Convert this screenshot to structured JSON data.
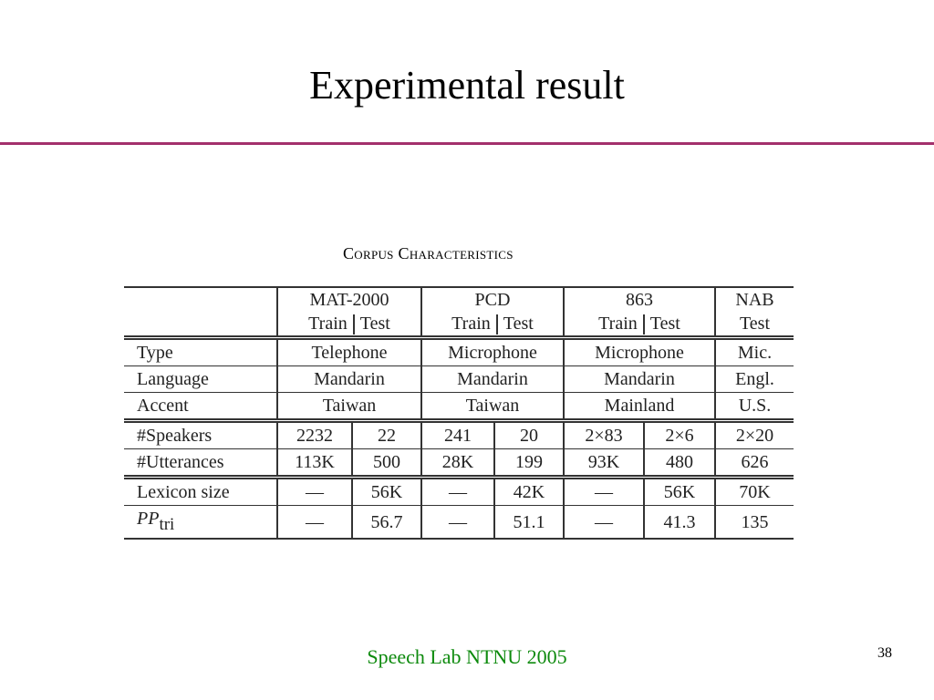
{
  "slide": {
    "title": "Experimental result",
    "footer": "Speech Lab NTNU 2005",
    "page_number": "38",
    "accent_color": "#a3306c",
    "footer_color": "#0d8a0d"
  },
  "table": {
    "caption": "Corpus Characteristics",
    "corpora": [
      "MAT-2000",
      "PCD",
      "863",
      "NAB"
    ],
    "subheaders": {
      "train": "Train",
      "test": "Test",
      "nab_test": "Test"
    },
    "rows": {
      "type": {
        "label": "Type",
        "values": [
          "Telephone",
          "Microphone",
          "Microphone",
          "Mic."
        ]
      },
      "language": {
        "label": "Language",
        "values": [
          "Mandarin",
          "Mandarin",
          "Mandarin",
          "Engl."
        ]
      },
      "accent": {
        "label": "Accent",
        "values": [
          "Taiwan",
          "Taiwan",
          "Mainland",
          "U.S."
        ]
      },
      "speakers": {
        "label": "#Speakers",
        "values": [
          "2232",
          "22",
          "241",
          "20",
          "2×83",
          "2×6",
          "2×20"
        ]
      },
      "utterances": {
        "label": "#Utterances",
        "values": [
          "113K",
          "500",
          "28K",
          "199",
          "93K",
          "480",
          "626"
        ]
      },
      "lexicon": {
        "label": "Lexicon size",
        "values": [
          "—",
          "56K",
          "—",
          "42K",
          "—",
          "56K",
          "70K"
        ]
      },
      "perplexity": {
        "label_main": "PP",
        "label_sub": "tri",
        "values": [
          "—",
          "56.7",
          "—",
          "51.1",
          "—",
          "41.3",
          "135"
        ]
      }
    }
  }
}
